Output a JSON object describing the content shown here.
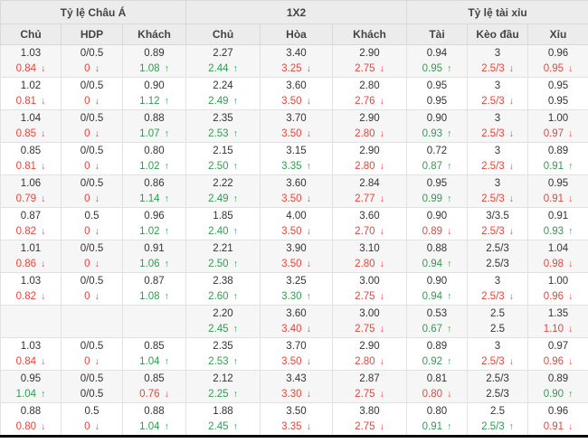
{
  "table": {
    "groups": [
      {
        "label": "Tỷ lệ Châu Á",
        "columns": [
          "Chủ",
          "HDP",
          "Khách"
        ]
      },
      {
        "label": "1X2",
        "columns": [
          "Chủ",
          "Hòa",
          "Khách"
        ]
      },
      {
        "label": "Tỷ lệ tài xỉu",
        "columns": [
          "Tài",
          "Kèo đầu",
          "Xỉu"
        ]
      }
    ],
    "rows": [
      {
        "cells": [
          [
            "1.03",
            "0.84",
            "down"
          ],
          [
            "0/0.5",
            "0",
            "down"
          ],
          [
            "0.89",
            "1.08",
            "up"
          ],
          [
            "2.27",
            "2.44",
            "up"
          ],
          [
            "3.40",
            "3.25",
            "down"
          ],
          [
            "2.90",
            "2.75",
            "down"
          ],
          [
            "0.94",
            "0.95",
            "up"
          ],
          [
            "3",
            "2.5/3",
            "down"
          ],
          [
            "0.96",
            "0.95",
            "down"
          ]
        ]
      },
      {
        "cells": [
          [
            "1.02",
            "0.81",
            "down"
          ],
          [
            "0/0.5",
            "0",
            "down"
          ],
          [
            "0.90",
            "1.12",
            "up"
          ],
          [
            "2.24",
            "2.49",
            "up"
          ],
          [
            "3.60",
            "3.50",
            "down"
          ],
          [
            "2.80",
            "2.76",
            "down"
          ],
          [
            "0.95",
            "0.95",
            "none"
          ],
          [
            "3",
            "2.5/3",
            "down"
          ],
          [
            "0.95",
            "0.95",
            "none"
          ]
        ]
      },
      {
        "cells": [
          [
            "1.04",
            "0.85",
            "down"
          ],
          [
            "0/0.5",
            "0",
            "down"
          ],
          [
            "0.88",
            "1.07",
            "up"
          ],
          [
            "2.35",
            "2.53",
            "up"
          ],
          [
            "3.70",
            "3.50",
            "down"
          ],
          [
            "2.90",
            "2.80",
            "down"
          ],
          [
            "0.90",
            "0.93",
            "up"
          ],
          [
            "3",
            "2.5/3",
            "down"
          ],
          [
            "1.00",
            "0.97",
            "down"
          ]
        ]
      },
      {
        "cells": [
          [
            "0.85",
            "0.81",
            "down"
          ],
          [
            "0/0.5",
            "0",
            "down"
          ],
          [
            "0.80",
            "1.02",
            "up"
          ],
          [
            "2.15",
            "2.50",
            "up"
          ],
          [
            "3.15",
            "3.35",
            "up"
          ],
          [
            "2.90",
            "2.80",
            "down"
          ],
          [
            "0.72",
            "0.87",
            "up"
          ],
          [
            "3",
            "2.5/3",
            "down"
          ],
          [
            "0.89",
            "0.91",
            "up"
          ]
        ]
      },
      {
        "cells": [
          [
            "1.06",
            "0.79",
            "down"
          ],
          [
            "0/0.5",
            "0",
            "down"
          ],
          [
            "0.86",
            "1.14",
            "up"
          ],
          [
            "2.22",
            "2.49",
            "up"
          ],
          [
            "3.60",
            "3.50",
            "down"
          ],
          [
            "2.84",
            "2.77",
            "down"
          ],
          [
            "0.95",
            "0.99",
            "up"
          ],
          [
            "3",
            "2.5/3",
            "down"
          ],
          [
            "0.95",
            "0.91",
            "down"
          ]
        ]
      },
      {
        "cells": [
          [
            "0.87",
            "0.82",
            "down"
          ],
          [
            "0.5",
            "0",
            "down"
          ],
          [
            "0.96",
            "1.02",
            "up"
          ],
          [
            "1.85",
            "2.40",
            "up"
          ],
          [
            "4.00",
            "3.50",
            "down"
          ],
          [
            "3.60",
            "2.70",
            "down"
          ],
          [
            "0.90",
            "0.89",
            "down"
          ],
          [
            "3/3.5",
            "2.5/3",
            "down"
          ],
          [
            "0.91",
            "0.93",
            "up"
          ]
        ]
      },
      {
        "cells": [
          [
            "1.01",
            "0.86",
            "down"
          ],
          [
            "0/0.5",
            "0",
            "down"
          ],
          [
            "0.91",
            "1.06",
            "up"
          ],
          [
            "2.21",
            "2.50",
            "up"
          ],
          [
            "3.90",
            "3.50",
            "down"
          ],
          [
            "3.10",
            "2.80",
            "down"
          ],
          [
            "0.88",
            "0.94",
            "up"
          ],
          [
            "2.5/3",
            "2.5/3",
            "none"
          ],
          [
            "1.04",
            "0.98",
            "down"
          ]
        ]
      },
      {
        "cells": [
          [
            "1.03",
            "0.82",
            "down"
          ],
          [
            "0/0.5",
            "0",
            "down"
          ],
          [
            "0.87",
            "1.08",
            "up"
          ],
          [
            "2.38",
            "2.60",
            "up"
          ],
          [
            "3.25",
            "3.30",
            "up"
          ],
          [
            "3.00",
            "2.75",
            "down"
          ],
          [
            "0.90",
            "0.94",
            "up"
          ],
          [
            "3",
            "2.5/3",
            "down"
          ],
          [
            "1.00",
            "0.96",
            "down"
          ]
        ]
      },
      {
        "cells": [
          [
            "",
            "",
            ""
          ],
          [
            "",
            "",
            ""
          ],
          [
            "",
            "",
            ""
          ],
          [
            "2.20",
            "2.45",
            "up"
          ],
          [
            "3.60",
            "3.40",
            "down"
          ],
          [
            "3.00",
            "2.75",
            "down"
          ],
          [
            "0.53",
            "0.67",
            "up"
          ],
          [
            "2.5",
            "2.5",
            "none"
          ],
          [
            "1.35",
            "1.10",
            "down"
          ]
        ]
      },
      {
        "cells": [
          [
            "1.03",
            "0.84",
            "down"
          ],
          [
            "0/0.5",
            "0",
            "down"
          ],
          [
            "0.85",
            "1.04",
            "up"
          ],
          [
            "2.35",
            "2.53",
            "up"
          ],
          [
            "3.70",
            "3.50",
            "down"
          ],
          [
            "2.90",
            "2.80",
            "down"
          ],
          [
            "0.89",
            "0.92",
            "up"
          ],
          [
            "3",
            "2.5/3",
            "down"
          ],
          [
            "0.97",
            "0.96",
            "down"
          ]
        ]
      },
      {
        "cells": [
          [
            "0.95",
            "1.04",
            "up"
          ],
          [
            "0/0.5",
            "0/0.5",
            "none"
          ],
          [
            "0.85",
            "0.76",
            "down"
          ],
          [
            "2.12",
            "2.25",
            "up"
          ],
          [
            "3.43",
            "3.30",
            "down"
          ],
          [
            "2.87",
            "2.75",
            "down"
          ],
          [
            "0.81",
            "0.80",
            "down"
          ],
          [
            "2.5/3",
            "2.5/3",
            "none"
          ],
          [
            "0.89",
            "0.90",
            "up"
          ]
        ]
      },
      {
        "cells": [
          [
            "0.88",
            "0.80",
            "down"
          ],
          [
            "0.5",
            "0",
            "down"
          ],
          [
            "0.88",
            "1.04",
            "up"
          ],
          [
            "1.88",
            "2.45",
            "up"
          ],
          [
            "3.50",
            "3.35",
            "down"
          ],
          [
            "3.80",
            "2.75",
            "down"
          ],
          [
            "0.80",
            "0.91",
            "up"
          ],
          [
            "2.5",
            "2.5/3",
            "up"
          ],
          [
            "0.96",
            "0.91",
            "down"
          ]
        ]
      }
    ]
  },
  "icons": {
    "up_arrow": "↑",
    "down_arrow": "↓"
  },
  "colors": {
    "up": "#2d9e4f",
    "down": "#e8443a",
    "text": "#333333",
    "header_bg": "#ececec",
    "row_alt_bg": "#f6f6f6"
  }
}
